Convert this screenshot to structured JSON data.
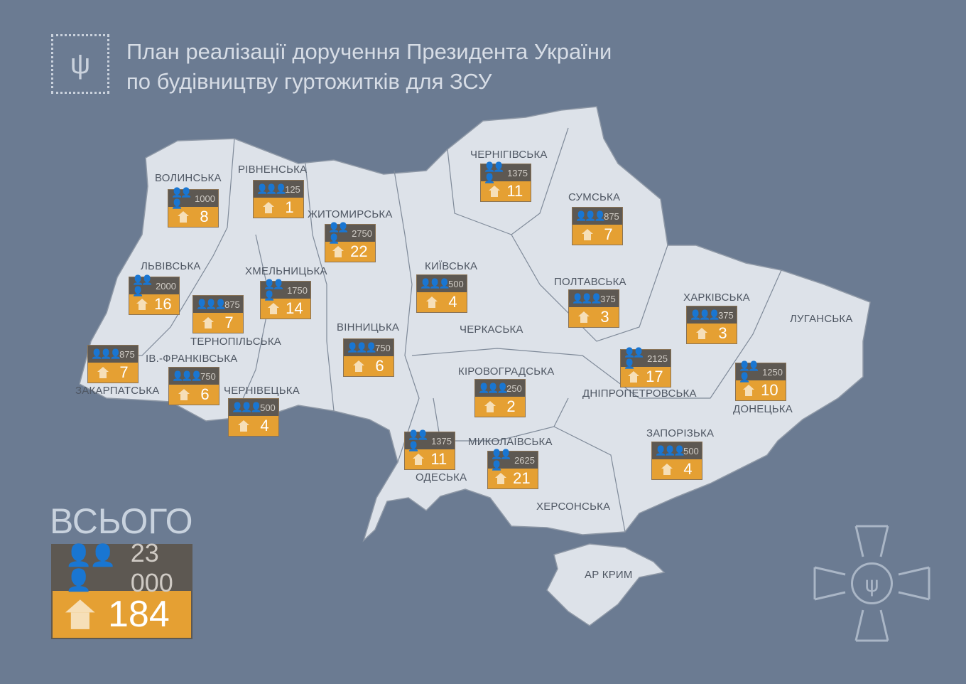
{
  "header": {
    "title_line1": "План реалізації доручення Президента України",
    "title_line2": "по будівництву гуртожитків для ЗСУ",
    "logo_icon": "trident-icon"
  },
  "colors": {
    "background": "#6b7b92",
    "map": "#dde2e9",
    "people_box": "#5d5852",
    "houses_box": "#e5a033"
  },
  "regions": [
    {
      "name": "ВОЛИНСЬКА",
      "people": "1000",
      "houses": "8"
    },
    {
      "name": "РІВНЕНСЬКА",
      "people": "125",
      "houses": "1"
    },
    {
      "name": "ЖИТОМИРСЬКА",
      "people": "2750",
      "houses": "22"
    },
    {
      "name": "ЧЕРНІГІВСЬКА",
      "people": "1375",
      "houses": "11"
    },
    {
      "name": "СУМСЬКА",
      "people": "875",
      "houses": "7"
    },
    {
      "name": "КИЇВСЬКА",
      "people": "500",
      "houses": "4"
    },
    {
      "name": "ЛЬВІВСЬКА",
      "people": "2000",
      "houses": "16"
    },
    {
      "name": "ХМЕЛЬНИЦЬКА",
      "people": "1750",
      "houses": "14"
    },
    {
      "name": "ТЕРНОПІЛЬСЬКА",
      "people": "875",
      "houses": "7"
    },
    {
      "name": "ПОЛТАВСЬКА",
      "people": "375",
      "houses": "3"
    },
    {
      "name": "ХАРКІВСЬКА",
      "people": "375",
      "houses": "3"
    },
    {
      "name": "ЛУГАНСЬКА"
    },
    {
      "name": "ВІННИЦЬКА",
      "people": "750",
      "houses": "6"
    },
    {
      "name": "ЧЕРКАСЬКА"
    },
    {
      "name": "ЗАКАРПАТСЬКА",
      "people": "875",
      "houses": "7"
    },
    {
      "name": "ІВ.-ФРАНКІВСЬКА",
      "people": "750",
      "houses": "6"
    },
    {
      "name": "ЧЕРНІВЕЦЬКА",
      "people": "500",
      "houses": "4"
    },
    {
      "name": "КІРОВОГРАДСЬКА",
      "people": "250",
      "houses": "2"
    },
    {
      "name": "ДНІПРОПЕТРОВСЬКА",
      "people": "2125",
      "houses": "17"
    },
    {
      "name": "ДОНЕЦЬКА",
      "people": "1250",
      "houses": "10"
    },
    {
      "name": "ЗАПОРІЗЬКА",
      "people": "500",
      "houses": "4"
    },
    {
      "name": "ОДЕСЬКА",
      "people": "1375",
      "houses": "11"
    },
    {
      "name": "МИКОЛАЇВСЬКА",
      "people": "2625",
      "houses": "21"
    },
    {
      "name": "ХЕРСОНСЬКА"
    },
    {
      "name": "АР КРИМ"
    }
  ],
  "total": {
    "label": "ВСЬОГО",
    "people": "23 000",
    "houses": "184"
  }
}
